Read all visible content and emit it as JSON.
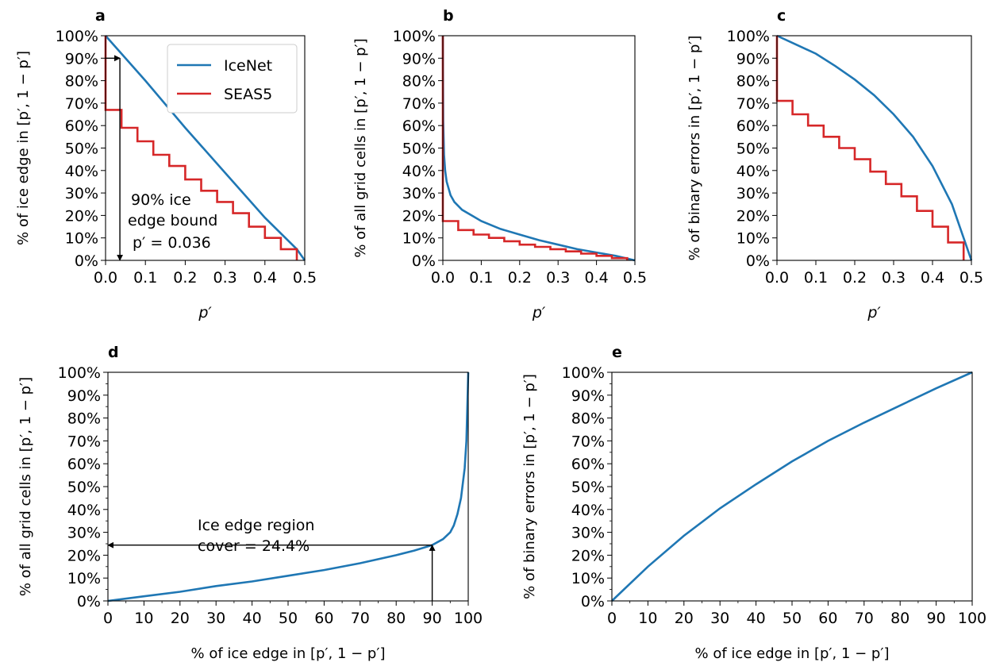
{
  "colors": {
    "icenet": "#1f77b4",
    "seas5": "#d62728",
    "axis": "#000000",
    "arrow": "#000000"
  },
  "chart_data": [
    {
      "id": "a",
      "type": "line",
      "panel_label": "a",
      "xlabel": "p′",
      "ylabel": "% of ice edge in [p′, 1 − p′]",
      "xlim": [
        0,
        0.5
      ],
      "ylim": [
        0,
        100
      ],
      "xticks": [
        0,
        0.1,
        0.2,
        0.3,
        0.4,
        0.5
      ],
      "xticklabels": [
        "0.0",
        "0.1",
        "0.2",
        "0.3",
        "0.4",
        "0.5"
      ],
      "yticks": [
        0,
        10,
        20,
        30,
        40,
        50,
        60,
        70,
        80,
        90,
        100
      ],
      "yticklabels": [
        "0%",
        "10%",
        "20%",
        "30%",
        "40%",
        "50%",
        "60%",
        "70%",
        "80%",
        "90%",
        "100%"
      ],
      "legend": {
        "position": "upper right",
        "entries": [
          "IceNet",
          "SEAS5"
        ]
      },
      "series": [
        {
          "name": "IceNet",
          "color": "#1f77b4",
          "x": [
            0,
            0.1,
            0.2,
            0.3,
            0.4,
            0.48,
            0.5
          ],
          "y": [
            100,
            80,
            59,
            39,
            19,
            5,
            0
          ]
        },
        {
          "name": "SEAS5",
          "color": "#d62728",
          "step": true,
          "x": [
            0,
            0.0,
            0.04,
            0.04,
            0.08,
            0.08,
            0.12,
            0.12,
            0.16,
            0.16,
            0.2,
            0.2,
            0.24,
            0.24,
            0.28,
            0.28,
            0.32,
            0.32,
            0.36,
            0.36,
            0.4,
            0.4,
            0.44,
            0.44,
            0.48,
            0.48
          ],
          "y": [
            100,
            67,
            67,
            59,
            59,
            53,
            53,
            47,
            47,
            42,
            42,
            36,
            36,
            31,
            31,
            26,
            26,
            21,
            21,
            15,
            15,
            10,
            10,
            5,
            5,
            0
          ]
        }
      ],
      "annotation": {
        "lines": [
          "90% ice",
          "edge bound",
          "p′ = 0.036"
        ],
        "x": 0.036,
        "y": 90
      }
    },
    {
      "id": "b",
      "type": "line",
      "panel_label": "b",
      "xlabel": "p′",
      "ylabel": "% of all grid cells in [p′, 1 − p′]",
      "xlim": [
        0,
        0.5
      ],
      "ylim": [
        0,
        100
      ],
      "xticks": [
        0,
        0.1,
        0.2,
        0.3,
        0.4,
        0.5
      ],
      "xticklabels": [
        "0.0",
        "0.1",
        "0.2",
        "0.3",
        "0.4",
        "0.5"
      ],
      "yticks": [
        0,
        10,
        20,
        30,
        40,
        50,
        60,
        70,
        80,
        90,
        100
      ],
      "yticklabels": [
        "0%",
        "10%",
        "20%",
        "30%",
        "40%",
        "50%",
        "60%",
        "70%",
        "80%",
        "90%",
        "100%"
      ],
      "series": [
        {
          "name": "IceNet",
          "color": "#1f77b4",
          "x": [
            0,
            0.001,
            0.003,
            0.006,
            0.01,
            0.02,
            0.03,
            0.05,
            0.08,
            0.1,
            0.15,
            0.2,
            0.25,
            0.3,
            0.35,
            0.4,
            0.45,
            0.5
          ],
          "y": [
            100,
            62,
            47,
            40,
            35,
            29,
            26,
            22.5,
            19.5,
            17.5,
            14,
            11.5,
            9,
            7,
            5,
            3.5,
            2,
            0
          ]
        },
        {
          "name": "SEAS5",
          "color": "#d62728",
          "step": true,
          "x": [
            0,
            0.0,
            0.04,
            0.04,
            0.08,
            0.08,
            0.12,
            0.12,
            0.16,
            0.16,
            0.2,
            0.2,
            0.24,
            0.24,
            0.28,
            0.28,
            0.32,
            0.32,
            0.36,
            0.36,
            0.4,
            0.4,
            0.44,
            0.44,
            0.48,
            0.48
          ],
          "y": [
            100,
            17.5,
            17.5,
            13.5,
            13.5,
            11.5,
            11.5,
            10,
            10,
            8.5,
            8.5,
            7,
            7,
            6,
            6,
            5,
            5,
            4,
            4,
            3,
            3,
            2,
            2,
            1,
            1,
            0
          ]
        }
      ]
    },
    {
      "id": "c",
      "type": "line",
      "panel_label": "c",
      "xlabel": "p′",
      "ylabel": "% of binary errors in [p′, 1 − p′]",
      "xlim": [
        0,
        0.5
      ],
      "ylim": [
        0,
        100
      ],
      "xticks": [
        0,
        0.1,
        0.2,
        0.3,
        0.4,
        0.5
      ],
      "xticklabels": [
        "0.0",
        "0.1",
        "0.2",
        "0.3",
        "0.4",
        "0.5"
      ],
      "yticks": [
        0,
        10,
        20,
        30,
        40,
        50,
        60,
        70,
        80,
        90,
        100
      ],
      "yticklabels": [
        "0%",
        "10%",
        "20%",
        "30%",
        "40%",
        "50%",
        "60%",
        "70%",
        "80%",
        "90%",
        "100%"
      ],
      "series": [
        {
          "name": "IceNet",
          "color": "#1f77b4",
          "x": [
            0,
            0.05,
            0.1,
            0.15,
            0.2,
            0.25,
            0.3,
            0.35,
            0.4,
            0.45,
            0.5
          ],
          "y": [
            100,
            96,
            92,
            86.5,
            80.5,
            73.5,
            65,
            55,
            42,
            25,
            0
          ]
        },
        {
          "name": "SEAS5",
          "color": "#d62728",
          "step": true,
          "x": [
            0,
            0.0,
            0.04,
            0.04,
            0.08,
            0.08,
            0.12,
            0.12,
            0.16,
            0.16,
            0.2,
            0.2,
            0.24,
            0.24,
            0.28,
            0.28,
            0.32,
            0.32,
            0.36,
            0.36,
            0.4,
            0.4,
            0.44,
            0.44,
            0.48,
            0.48
          ],
          "y": [
            100,
            71,
            71,
            65,
            65,
            60,
            60,
            55,
            55,
            50,
            50,
            45,
            45,
            39.5,
            39.5,
            34,
            34,
            28.5,
            28.5,
            22,
            22,
            15,
            15,
            8,
            8,
            0
          ]
        }
      ]
    },
    {
      "id": "d",
      "type": "line",
      "panel_label": "d",
      "xlabel": "% of ice edge in [p′, 1 − p′]",
      "ylabel": "% of all grid cells in [p′, 1 − p′]",
      "xlim": [
        0,
        100
      ],
      "ylim": [
        0,
        100
      ],
      "xticks": [
        0,
        10,
        20,
        30,
        40,
        50,
        60,
        70,
        80,
        90,
        100
      ],
      "xticklabels": [
        "0",
        "10",
        "20",
        "30",
        "40",
        "50",
        "60",
        "70",
        "80",
        "90",
        "100"
      ],
      "yticks": [
        0,
        10,
        20,
        30,
        40,
        50,
        60,
        70,
        80,
        90,
        100
      ],
      "yticklabels": [
        "0%",
        "10%",
        "20%",
        "30%",
        "40%",
        "50%",
        "60%",
        "70%",
        "80%",
        "90%",
        "100%"
      ],
      "series": [
        {
          "name": "IceNet",
          "color": "#1f77b4",
          "x": [
            0,
            10,
            20,
            30,
            40,
            50,
            60,
            70,
            80,
            85,
            90,
            93,
            95,
            96,
            97,
            98,
            99,
            99.5,
            100
          ],
          "y": [
            0,
            2,
            4,
            6.5,
            8.5,
            11,
            13.5,
            16.5,
            20,
            22,
            24.4,
            27,
            30,
            33,
            38,
            45,
            58,
            70,
            100
          ]
        }
      ],
      "annotation": {
        "lines": [
          "Ice edge region",
          "cover = 24.4%"
        ],
        "x": 90,
        "y": 24.4
      }
    },
    {
      "id": "e",
      "type": "line",
      "panel_label": "e",
      "xlabel": "% of ice edge in [p′, 1 − p′]",
      "ylabel": "% of binary errors in [p′, 1 − p′]",
      "xlim": [
        0,
        100
      ],
      "ylim": [
        0,
        100
      ],
      "xticks": [
        0,
        10,
        20,
        30,
        40,
        50,
        60,
        70,
        80,
        90,
        100
      ],
      "xticklabels": [
        "0",
        "10",
        "20",
        "30",
        "40",
        "50",
        "60",
        "70",
        "80",
        "90",
        "100"
      ],
      "yticks": [
        0,
        10,
        20,
        30,
        40,
        50,
        60,
        70,
        80,
        90,
        100
      ],
      "yticklabels": [
        "0%",
        "10%",
        "20%",
        "30%",
        "40%",
        "50%",
        "60%",
        "70%",
        "80%",
        "90%",
        "100%"
      ],
      "series": [
        {
          "name": "IceNet",
          "color": "#1f77b4",
          "x": [
            0,
            10,
            20,
            30,
            40,
            50,
            60,
            70,
            80,
            90,
            100
          ],
          "y": [
            0,
            15,
            28.5,
            40.5,
            51,
            61,
            70,
            78,
            85.5,
            93,
            100
          ]
        }
      ]
    }
  ]
}
